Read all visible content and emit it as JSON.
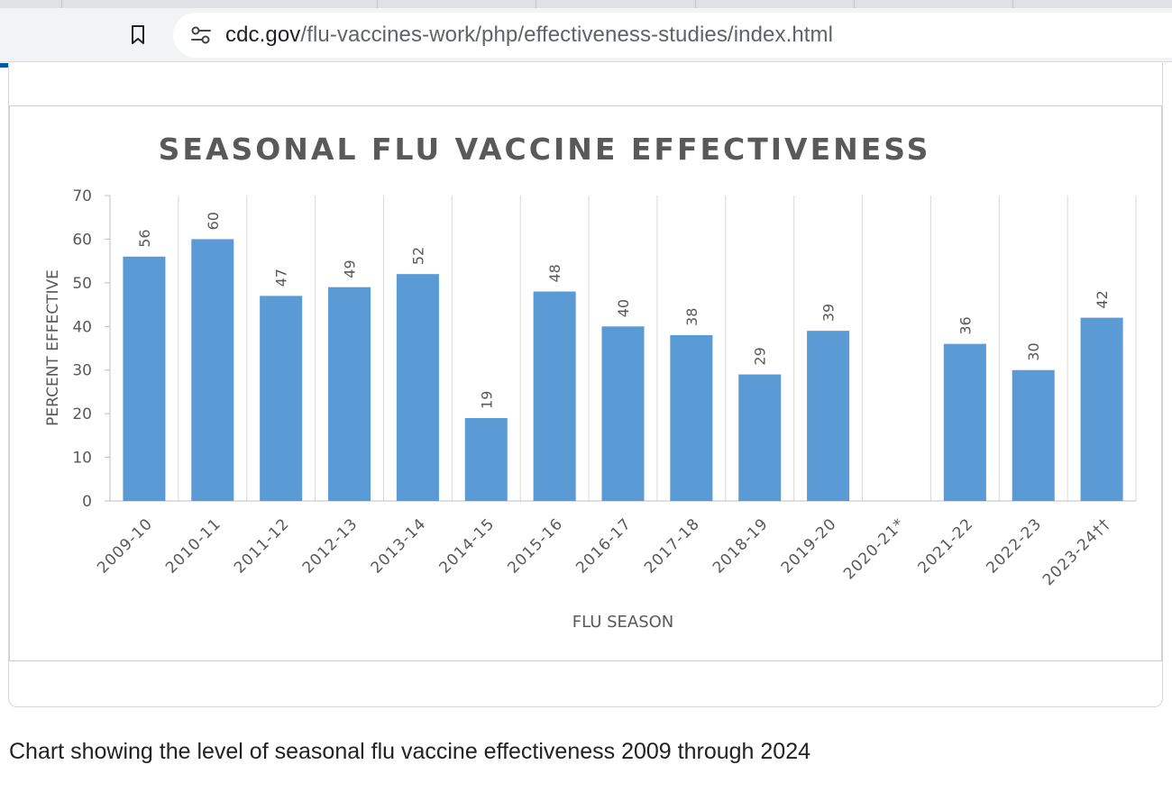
{
  "browser": {
    "url_domain": "cdc.gov",
    "url_path": "/flu-vaccines-work/php/effectiveness-studies/index.html",
    "bookmark_icon": "bookmark-icon",
    "site_info_icon": "tune-icon",
    "load_progress": 0.23
  },
  "caption": "Chart showing the level of seasonal flu vaccine effectiveness 2009 through 2024",
  "chart_data": {
    "type": "bar",
    "title": "SEASONAL FLU VACCINE EFFECTIVENESS",
    "xlabel": "FLU SEASON",
    "ylabel": "PERCENT EFFECTIVE",
    "ylim": [
      0,
      70
    ],
    "yticks": [
      0,
      10,
      20,
      30,
      40,
      50,
      60,
      70
    ],
    "categories": [
      "2009-10",
      "2010-11",
      "2011-12",
      "2012-13",
      "2013-14",
      "2014-15",
      "2015-16",
      "2016-17",
      "2017-18",
      "2018-19",
      "2019-20",
      "2020-21*",
      "2021-22",
      "2022-23",
      "2023-24††"
    ],
    "values": [
      56,
      60,
      47,
      49,
      52,
      19,
      48,
      40,
      38,
      29,
      39,
      null,
      36,
      30,
      42
    ],
    "bar_color": "#5b9bd5",
    "grid": "vertical separators between categories",
    "legend": "none"
  }
}
